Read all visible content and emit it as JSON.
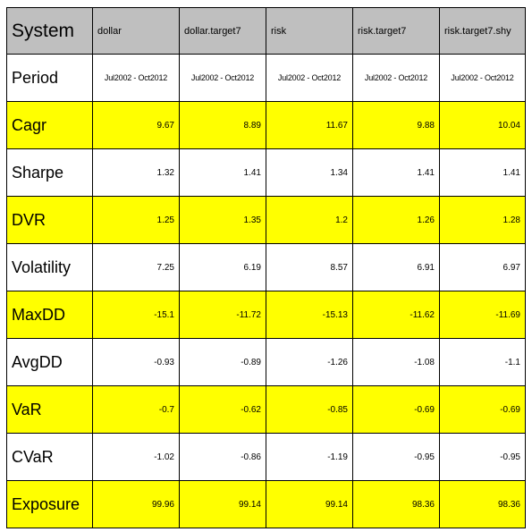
{
  "table": {
    "corner": "System",
    "columns": [
      "dollar",
      "dollar.target7",
      "risk",
      "risk.target7",
      "risk.target7.shy"
    ],
    "colors": {
      "highlight": "#ffff00",
      "header": "#bfbfbf",
      "plain": "#ffffff"
    },
    "rows": [
      {
        "label": "Period",
        "highlight": false,
        "is_period": true,
        "values": [
          "Jul2002 - Oct2012",
          "Jul2002 - Oct2012",
          "Jul2002 - Oct2012",
          "Jul2002 - Oct2012",
          "Jul2002 - Oct2012"
        ]
      },
      {
        "label": "Cagr",
        "highlight": true,
        "values": [
          "9.67",
          "8.89",
          "11.67",
          "9.88",
          "10.04"
        ]
      },
      {
        "label": "Sharpe",
        "highlight": false,
        "values": [
          "1.32",
          "1.41",
          "1.34",
          "1.41",
          "1.41"
        ]
      },
      {
        "label": "DVR",
        "highlight": true,
        "values": [
          "1.25",
          "1.35",
          "1.2",
          "1.26",
          "1.28"
        ]
      },
      {
        "label": "Volatility",
        "highlight": false,
        "values": [
          "7.25",
          "6.19",
          "8.57",
          "6.91",
          "6.97"
        ]
      },
      {
        "label": "MaxDD",
        "highlight": true,
        "values": [
          "-15.1",
          "-11.72",
          "-15.13",
          "-11.62",
          "-11.69"
        ]
      },
      {
        "label": "AvgDD",
        "highlight": false,
        "values": [
          "-0.93",
          "-0.89",
          "-1.26",
          "-1.08",
          "-1.1"
        ]
      },
      {
        "label": "VaR",
        "highlight": true,
        "values": [
          "-0.7",
          "-0.62",
          "-0.85",
          "-0.69",
          "-0.69"
        ]
      },
      {
        "label": "CVaR",
        "highlight": false,
        "values": [
          "-1.02",
          "-0.86",
          "-1.19",
          "-0.95",
          "-0.95"
        ]
      },
      {
        "label": "Exposure",
        "highlight": true,
        "values": [
          "99.96",
          "99.14",
          "99.14",
          "98.36",
          "98.36"
        ]
      }
    ]
  }
}
